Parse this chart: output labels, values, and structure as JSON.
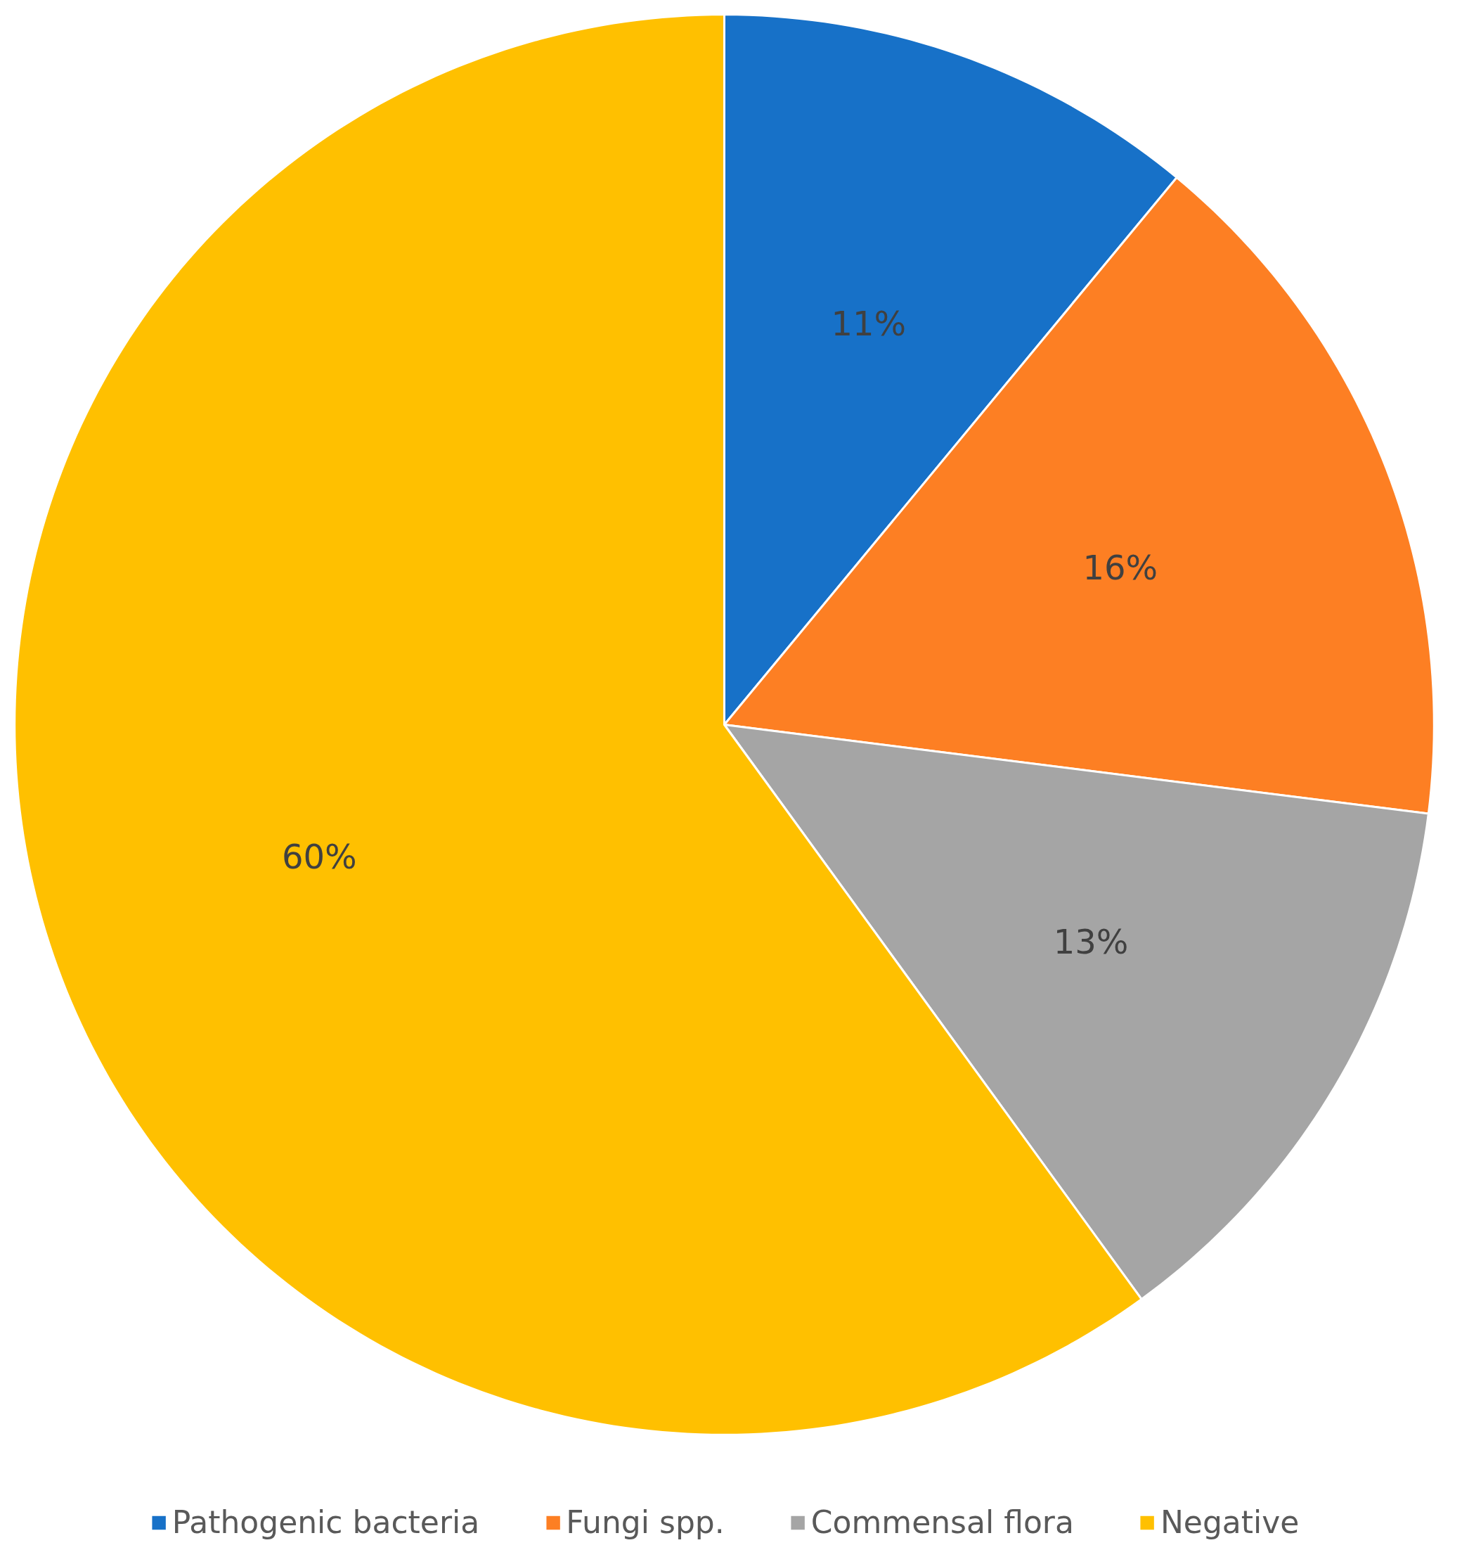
{
  "chart_data": {
    "type": "pie",
    "categories": [
      "Pathogenic bacteria",
      "Fungi spp.",
      "Commensal flora",
      "Negative"
    ],
    "values": [
      11,
      16,
      13,
      60
    ],
    "colors": [
      "#1771c8",
      "#fd7f23",
      "#a5a5a5",
      "#ffc000"
    ],
    "value_labels": [
      "11%",
      "16%",
      "13%",
      "60%"
    ],
    "legend": "bottom"
  }
}
